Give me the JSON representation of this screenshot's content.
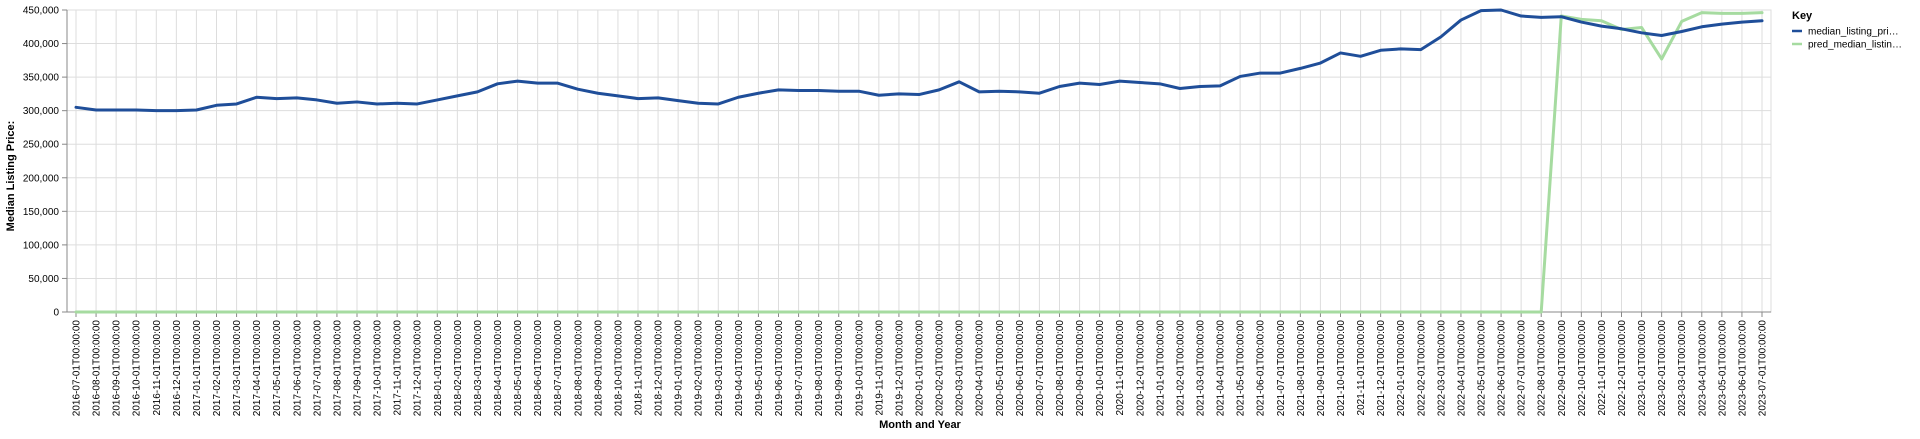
{
  "chart_data": {
    "type": "line",
    "xlabel": "Month and Year",
    "ylabel": "Median Listing Price:",
    "ylim": [
      0,
      450000
    ],
    "y_ticks": [
      0,
      50000,
      100000,
      150000,
      200000,
      250000,
      300000,
      350000,
      400000,
      450000
    ],
    "y_tick_labels": [
      "0",
      "50,000",
      "100,000",
      "150,000",
      "200,000",
      "250,000",
      "300,000",
      "350,000",
      "400,000",
      "450,000"
    ],
    "grid": true,
    "legend": {
      "title": "Key",
      "placement": "top-right"
    },
    "x": [
      "2016-07-01T00:00:00",
      "2016-08-01T00:00:00",
      "2016-09-01T00:00:00",
      "2016-10-01T00:00:00",
      "2016-11-01T00:00:00",
      "2016-12-01T00:00:00",
      "2017-01-01T00:00:00",
      "2017-02-01T00:00:00",
      "2017-03-01T00:00:00",
      "2017-04-01T00:00:00",
      "2017-05-01T00:00:00",
      "2017-06-01T00:00:00",
      "2017-07-01T00:00:00",
      "2017-08-01T00:00:00",
      "2017-09-01T00:00:00",
      "2017-10-01T00:00:00",
      "2017-11-01T00:00:00",
      "2017-12-01T00:00:00",
      "2018-01-01T00:00:00",
      "2018-02-01T00:00:00",
      "2018-03-01T00:00:00",
      "2018-04-01T00:00:00",
      "2018-05-01T00:00:00",
      "2018-06-01T00:00:00",
      "2018-07-01T00:00:00",
      "2018-08-01T00:00:00",
      "2018-09-01T00:00:00",
      "2018-10-01T00:00:00",
      "2018-11-01T00:00:00",
      "2018-12-01T00:00:00",
      "2019-01-01T00:00:00",
      "2019-02-01T00:00:00",
      "2019-03-01T00:00:00",
      "2019-04-01T00:00:00",
      "2019-05-01T00:00:00",
      "2019-06-01T00:00:00",
      "2019-07-01T00:00:00",
      "2019-08-01T00:00:00",
      "2019-09-01T00:00:00",
      "2019-10-01T00:00:00",
      "2019-11-01T00:00:00",
      "2019-12-01T00:00:00",
      "2020-01-01T00:00:00",
      "2020-02-01T00:00:00",
      "2020-03-01T00:00:00",
      "2020-04-01T00:00:00",
      "2020-05-01T00:00:00",
      "2020-06-01T00:00:00",
      "2020-07-01T00:00:00",
      "2020-08-01T00:00:00",
      "2020-09-01T00:00:00",
      "2020-10-01T00:00:00",
      "2020-11-01T00:00:00",
      "2020-12-01T00:00:00",
      "2021-01-01T00:00:00",
      "2021-02-01T00:00:00",
      "2021-03-01T00:00:00",
      "2021-04-01T00:00:00",
      "2021-05-01T00:00:00",
      "2021-06-01T00:00:00",
      "2021-07-01T00:00:00",
      "2021-08-01T00:00:00",
      "2021-09-01T00:00:00",
      "2021-10-01T00:00:00",
      "2021-11-01T00:00:00",
      "2021-12-01T00:00:00",
      "2022-01-01T00:00:00",
      "2022-02-01T00:00:00",
      "2022-03-01T00:00:00",
      "2022-04-01T00:00:00",
      "2022-05-01T00:00:00",
      "2022-06-01T00:00:00",
      "2022-07-01T00:00:00",
      "2022-08-01T00:00:00",
      "2022-09-01T00:00:00",
      "2022-10-01T00:00:00",
      "2022-11-01T00:00:00",
      "2022-12-01T00:00:00",
      "2023-01-01T00:00:00",
      "2023-02-01T00:00:00",
      "2023-03-01T00:00:00",
      "2023-04-01T00:00:00",
      "2023-05-01T00:00:00",
      "2023-06-01T00:00:00",
      "2023-07-01T00:00:00"
    ],
    "series": [
      {
        "name": "median_listing_pri…",
        "color": "#1f4e99",
        "values": [
          305000,
          301000,
          301000,
          301000,
          300000,
          300000,
          301000,
          308000,
          310000,
          320000,
          318000,
          319000,
          316000,
          311000,
          313000,
          310000,
          311000,
          310000,
          316000,
          322000,
          328000,
          340000,
          344000,
          341000,
          341000,
          332000,
          326000,
          322000,
          318000,
          319000,
          315000,
          311000,
          310000,
          320000,
          326000,
          331000,
          330000,
          330000,
          329000,
          329000,
          323000,
          325000,
          324000,
          331000,
          343000,
          328000,
          329000,
          328000,
          326000,
          336000,
          341000,
          339000,
          344000,
          342000,
          340000,
          333000,
          336000,
          337000,
          351000,
          356000,
          356000,
          363000,
          371000,
          386000,
          381000,
          390000,
          392000,
          391000,
          410000,
          435000,
          449000,
          450000,
          441000,
          439000,
          440000,
          432000,
          426000,
          422000,
          416000,
          412000,
          418000,
          425000,
          429000,
          432000,
          434000
        ]
      },
      {
        "name": "pred_median_listin…",
        "color": "#a6dba0",
        "values": [
          0,
          0,
          0,
          0,
          0,
          0,
          0,
          0,
          0,
          0,
          0,
          0,
          0,
          0,
          0,
          0,
          0,
          0,
          0,
          0,
          0,
          0,
          0,
          0,
          0,
          0,
          0,
          0,
          0,
          0,
          0,
          0,
          0,
          0,
          0,
          0,
          0,
          0,
          0,
          0,
          0,
          0,
          0,
          0,
          0,
          0,
          0,
          0,
          0,
          0,
          0,
          0,
          0,
          0,
          0,
          0,
          0,
          0,
          0,
          0,
          0,
          0,
          0,
          0,
          0,
          0,
          0,
          0,
          0,
          0,
          0,
          0,
          0,
          0,
          441000,
          436000,
          434000,
          421000,
          424000,
          377000,
          433000,
          446000,
          445000,
          445000,
          446000
        ]
      }
    ]
  }
}
